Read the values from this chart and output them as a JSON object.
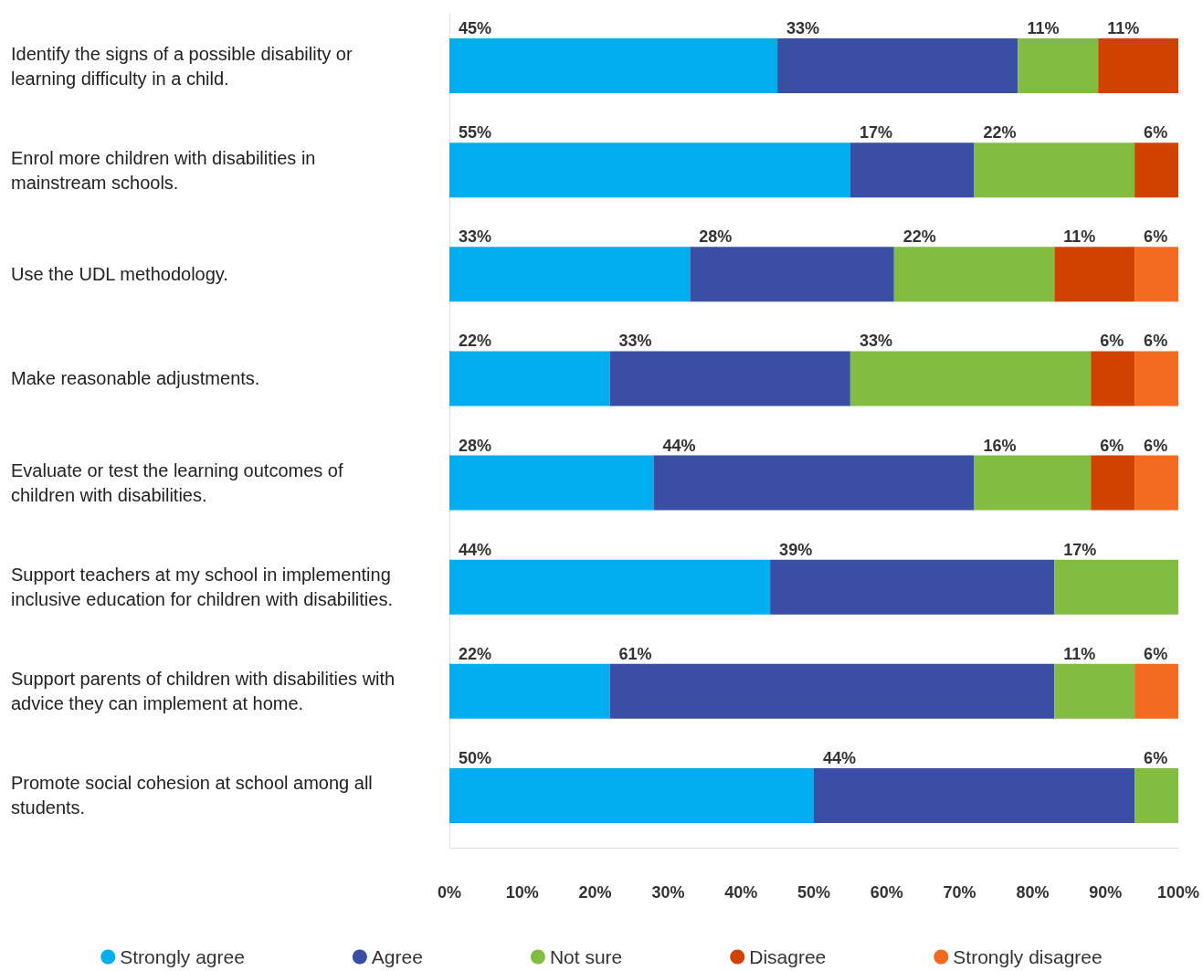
{
  "chart_data": {
    "type": "bar",
    "orientation": "horizontal",
    "stacked": true,
    "categories": [
      "Identify the signs of a possible disability or learning difficulty in a child.",
      "Enrol more children with disabilities in mainstream schools.",
      "Use the UDL methodology.",
      "Make reasonable adjustments.",
      "Evaluate or test the learning outcomes of children with disabilities.",
      "Support teachers at my school in implementing inclusive education for children with disabilities.",
      "Support parents of children with disabilities with advice they can implement at home.",
      "Promote social cohesion at school among all students."
    ],
    "series": [
      {
        "name": "Strongly agree",
        "color": "#00aeef",
        "values": [
          45,
          55,
          33,
          22,
          28,
          44,
          22,
          50
        ],
        "value_labels": [
          "45%",
          "55%",
          "33%",
          "22%",
          "28%",
          "44%",
          "22%",
          "50%"
        ]
      },
      {
        "name": "Agree",
        "color": "#3a4fa3",
        "values": [
          33,
          17,
          28,
          33,
          44,
          39,
          61,
          44
        ],
        "value_labels": [
          "33%",
          "17%",
          "28%",
          "33%",
          "44%",
          "39%",
          "61%",
          "44%"
        ]
      },
      {
        "name": "Not sure",
        "color": "#82bc41",
        "values": [
          11,
          22,
          22,
          33,
          16,
          17,
          11,
          6
        ],
        "value_labels": [
          "11%",
          "22%",
          "22%",
          "33%",
          "16%",
          "17%",
          "11%",
          "6%"
        ]
      },
      {
        "name": "Disagree",
        "color": "#cf4200",
        "values": [
          11,
          6,
          11,
          6,
          6,
          null,
          null,
          null
        ],
        "value_labels": [
          "11%",
          "6%",
          "11%",
          "6%",
          "6%",
          null,
          null,
          null
        ]
      },
      {
        "name": "Strongly disagree",
        "color": "#f26b21",
        "values": [
          null,
          null,
          6,
          6,
          6,
          null,
          6,
          null
        ],
        "value_labels": [
          null,
          null,
          "6%",
          "6%",
          "6%",
          null,
          "6%",
          null
        ]
      }
    ],
    "xlim": [
      0,
      100
    ],
    "xticks": [
      {
        "value": 0,
        "label": "0%"
      },
      {
        "value": 10,
        "label": "10%"
      },
      {
        "value": 20,
        "label": "20%"
      },
      {
        "value": 30,
        "label": "30%"
      },
      {
        "value": 40,
        "label": "40%"
      },
      {
        "value": 50,
        "label": "50%"
      },
      {
        "value": 60,
        "label": "60%"
      },
      {
        "value": 70,
        "label": "70%"
      },
      {
        "value": 80,
        "label": "80%"
      },
      {
        "value": 90,
        "label": "90%"
      },
      {
        "value": 100,
        "label": "100%"
      }
    ],
    "grid": false,
    "legend": "bottom"
  }
}
